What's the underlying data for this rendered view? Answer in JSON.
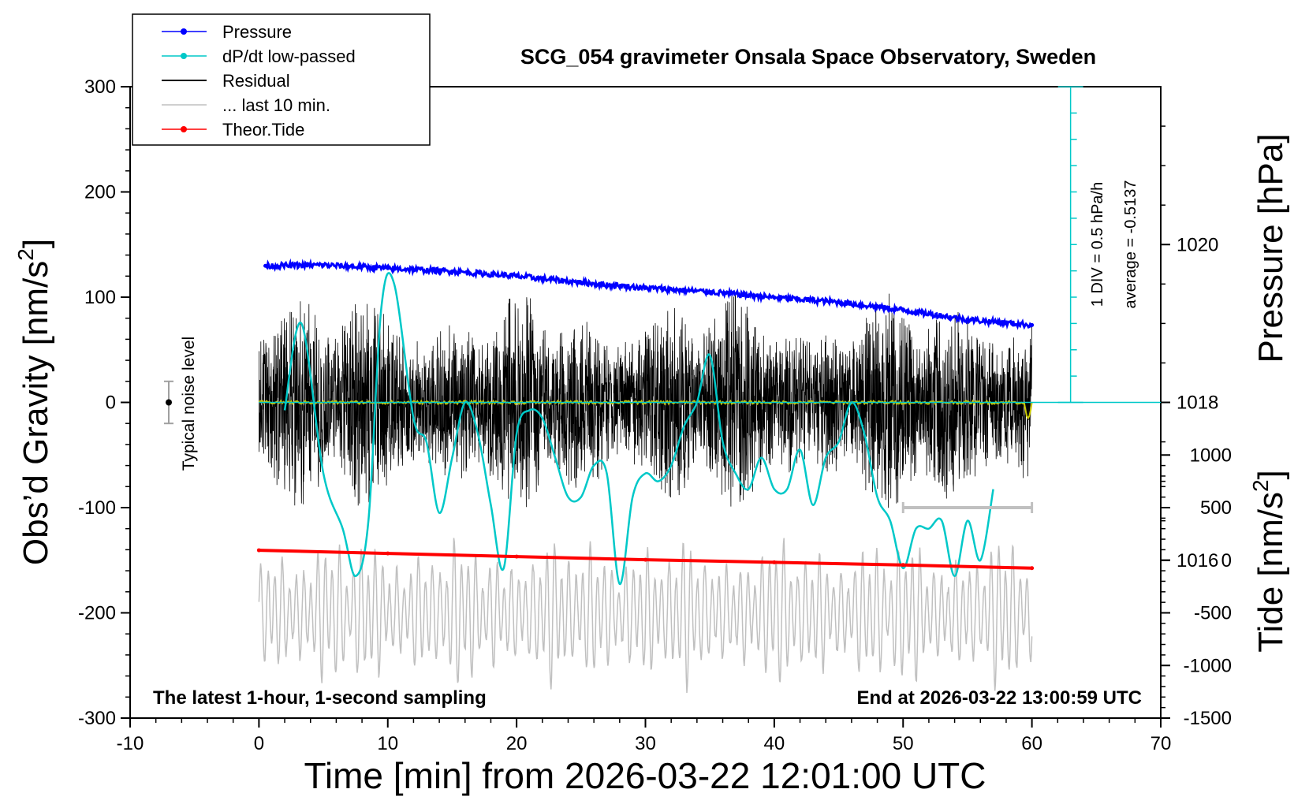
{
  "chart_data": {
    "type": "line",
    "title": "SCG_054 gravimeter Onsala Space Observatory, Sweden",
    "xlabel": "Time [min] from 2026-03-22 12:01:00 UTC",
    "ylabel_left_main": "Obs’d Gravity [nm/s",
    "ylabel_left_sup": "2",
    "ylabel_left_end": "]",
    "ylabel_right_pressure": "Pressure [hPa]",
    "ylabel_right_tide_main": "Tide [nm/s",
    "ylabel_right_tide_sup": "2",
    "ylabel_right_tide_end": "]",
    "xlim": [
      -10,
      70
    ],
    "ylim_gravity": [
      -300,
      300
    ],
    "ylim_pressure": [
      1014,
      1022
    ],
    "ylim_tide": [
      -1500,
      4500
    ],
    "x_ticks": [
      "-10",
      "0",
      "10",
      "20",
      "30",
      "40",
      "50",
      "60",
      "70"
    ],
    "y_ticks_gravity": [
      "300",
      "200",
      "100",
      "0",
      "-100",
      "-200",
      "-300"
    ],
    "y_ticks_pressure": [
      "1020",
      "1018",
      "1016"
    ],
    "y_ticks_tide": [
      "1000",
      "500",
      "0",
      "-500",
      "-1000",
      "-1500"
    ],
    "annotation_left": "The latest 1-hour, 1-second sampling",
    "annotation_right": "End at 2026-03-22 13:00:59 UTC",
    "noise_label": "Typical noise level",
    "noise_level": 20,
    "dpdt_scale_label": "1 DIV = 0.5 hPa/h",
    "dpdt_average_label": "average = -0.5137",
    "dpdt_reference_pressure": 1018,
    "last10_bar": [
      50,
      60
    ],
    "grid": false,
    "legend_position": "top-left",
    "legend": [
      {
        "name": "Pressure",
        "color": "#0000ff",
        "style": "line-dot"
      },
      {
        "name": "dP/dt low-passed",
        "color": "#00c8c8",
        "style": "line-dot"
      },
      {
        "name": "Residual",
        "color": "#000000",
        "style": "line"
      },
      {
        "name": "... last 10 min.",
        "color": "#c0c0c0",
        "style": "line"
      },
      {
        "name": "Theor.Tide",
        "color": "#ff0000",
        "style": "line-dot"
      }
    ],
    "series": [
      {
        "name": "Pressure",
        "axis": "pressure",
        "color": "#0000ff",
        "x": [
          0.5,
          5,
          10,
          15,
          20,
          25,
          30,
          35,
          40,
          45,
          50,
          55,
          60
        ],
        "y": [
          1019.73,
          1019.74,
          1019.7,
          1019.66,
          1019.6,
          1019.52,
          1019.45,
          1019.4,
          1019.33,
          1019.27,
          1019.17,
          1019.05,
          1018.98
        ]
      },
      {
        "name": "dP/dt low-passed",
        "axis": "pressure",
        "color": "#00c8c8",
        "x": [
          2,
          3.3,
          5,
          6.5,
          7.5,
          8.5,
          9.5,
          10.5,
          12,
          13,
          14,
          15,
          16,
          17,
          18,
          19,
          20,
          21,
          22,
          23,
          24,
          25,
          26,
          27,
          28,
          29,
          30,
          31,
          32,
          33,
          34,
          35,
          36,
          37,
          38,
          39,
          40,
          41,
          42,
          43,
          44,
          45,
          46,
          47,
          48,
          49,
          50,
          51,
          52,
          53,
          54,
          55,
          56,
          57
        ],
        "y": [
          1017.9,
          1019.0,
          1017.1,
          1016.4,
          1015.8,
          1016.5,
          1019.2,
          1019.5,
          1017.8,
          1017.5,
          1016.6,
          1017.3,
          1018.0,
          1017.6,
          1016.7,
          1015.9,
          1017.6,
          1017.9,
          1017.8,
          1017.3,
          1016.8,
          1016.8,
          1017.2,
          1017.1,
          1015.7,
          1016.8,
          1017.1,
          1017.0,
          1017.2,
          1017.7,
          1018.0,
          1018.6,
          1017.5,
          1017.1,
          1016.9,
          1017.3,
          1016.9,
          1016.9,
          1017.4,
          1016.7,
          1017.3,
          1017.5,
          1018.0,
          1017.6,
          1016.8,
          1016.5,
          1015.9,
          1016.4,
          1016.4,
          1016.5,
          1015.8,
          1016.5,
          1016.0,
          1016.9
        ]
      },
      {
        "name": "Residual",
        "axis": "gravity",
        "color": "#000000",
        "x_range": [
          0,
          60
        ],
        "amplitude_range": [
          -120,
          130
        ]
      },
      {
        "name": "... last 10 min.",
        "axis": "gravity",
        "color": "#c0c0c0",
        "x_range": [
          0,
          60
        ],
        "amplitude_range": [
          -300,
          -100
        ]
      },
      {
        "name": "Theor.Tide",
        "axis": "tide",
        "color": "#ff0000",
        "x": [
          0,
          10,
          20,
          30,
          40,
          50,
          60
        ],
        "y": [
          95,
          65,
          35,
          5,
          -20,
          -45,
          -75
        ]
      }
    ]
  }
}
